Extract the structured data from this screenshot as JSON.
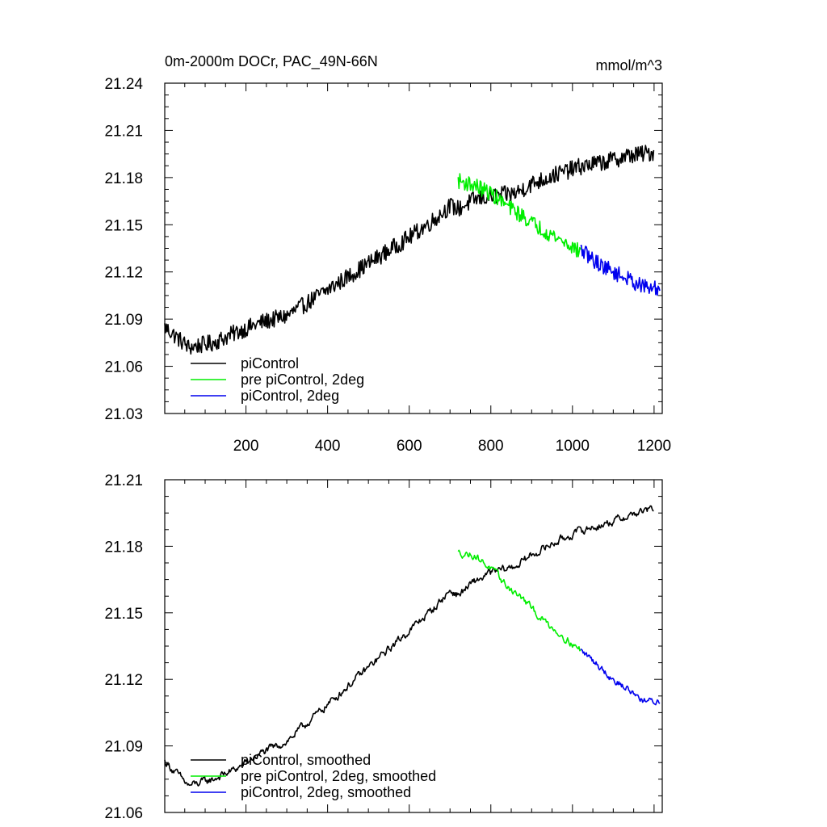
{
  "chart_data": [
    {
      "type": "line",
      "title": "0m-2000m DOCr, PAC_49N-66N",
      "units": "mmol/m^3",
      "xlim": [
        1,
        1220
      ],
      "ylim": [
        21.03,
        21.24
      ],
      "x_ticks": [
        200,
        400,
        600,
        800,
        1000,
        1200
      ],
      "x_tick_labels": [
        "200",
        "400",
        "600",
        "800",
        "1000",
        "1200"
      ],
      "y_ticks": [
        21.03,
        21.06,
        21.09,
        21.12,
        21.15,
        21.18,
        21.21,
        21.24
      ],
      "y_tick_labels": [
        "21.03",
        "21.06",
        "21.09",
        "21.12",
        "21.15",
        "21.18",
        "21.21",
        "21.24"
      ],
      "legend_position": "bottom-left",
      "series": [
        {
          "name": "piControl",
          "color": "#000000",
          "x": [
            1,
            60,
            120,
            180,
            240,
            300,
            360,
            420,
            480,
            540,
            600,
            660,
            700,
            720,
            760,
            800,
            860,
            900,
            960,
            1020,
            1080,
            1140,
            1200
          ],
          "values": [
            21.085,
            21.072,
            21.075,
            21.082,
            21.088,
            21.092,
            21.102,
            21.112,
            21.122,
            21.132,
            21.142,
            21.153,
            21.162,
            21.16,
            21.166,
            21.168,
            21.17,
            21.176,
            21.182,
            21.187,
            21.19,
            21.194,
            21.196
          ],
          "noise": 0.0055
        },
        {
          "name": "pre piControl, 2deg",
          "color": "#00ee00",
          "x": [
            720,
            760,
            800,
            840,
            880,
            920,
            960,
            1000,
            1020
          ],
          "values": [
            21.178,
            21.175,
            21.17,
            21.162,
            21.155,
            21.148,
            21.142,
            21.136,
            21.132
          ],
          "noise": 0.005
        },
        {
          "name": "piControl, 2deg",
          "color": "#0000ee",
          "x": [
            1020,
            1060,
            1100,
            1140,
            1180,
            1215
          ],
          "values": [
            21.134,
            21.126,
            21.12,
            21.115,
            21.11,
            21.109
          ],
          "noise": 0.005
        }
      ]
    },
    {
      "type": "line",
      "title": "",
      "xlim": [
        1,
        1220
      ],
      "ylim": [
        21.06,
        21.21
      ],
      "x_ticks": [
        200,
        400,
        600,
        800,
        1000,
        1200
      ],
      "y_ticks": [
        21.06,
        21.09,
        21.12,
        21.15,
        21.18,
        21.21
      ],
      "y_tick_labels": [
        "21.06",
        "21.09",
        "21.12",
        "21.15",
        "21.18",
        "21.21"
      ],
      "legend_position": "bottom-left",
      "series": [
        {
          "name": "piControl, smoothed",
          "color": "#000000",
          "x": [
            1,
            60,
            120,
            180,
            240,
            300,
            360,
            420,
            480,
            540,
            600,
            660,
            700,
            720,
            760,
            800,
            860,
            900,
            960,
            1020,
            1080,
            1140,
            1200
          ],
          "values": [
            21.083,
            21.072,
            21.075,
            21.08,
            21.087,
            21.092,
            21.102,
            21.112,
            21.122,
            21.132,
            21.142,
            21.152,
            21.16,
            21.158,
            21.164,
            21.168,
            21.171,
            21.176,
            21.182,
            21.187,
            21.19,
            21.194,
            21.197
          ],
          "noise": 0.0035
        },
        {
          "name": "pre piControl, 2deg, smoothed",
          "color": "#00ee00",
          "x": [
            720,
            760,
            800,
            840,
            880,
            920,
            960,
            1000,
            1020
          ],
          "values": [
            21.177,
            21.176,
            21.17,
            21.162,
            21.156,
            21.148,
            21.142,
            21.136,
            21.133
          ],
          "noise": 0.0032
        },
        {
          "name": "piControl, 2deg, smoothed",
          "color": "#0000ee",
          "x": [
            1020,
            1060,
            1100,
            1140,
            1180,
            1215
          ],
          "values": [
            21.133,
            21.127,
            21.12,
            21.115,
            21.11,
            21.11
          ],
          "noise": 0.0032
        }
      ]
    }
  ]
}
